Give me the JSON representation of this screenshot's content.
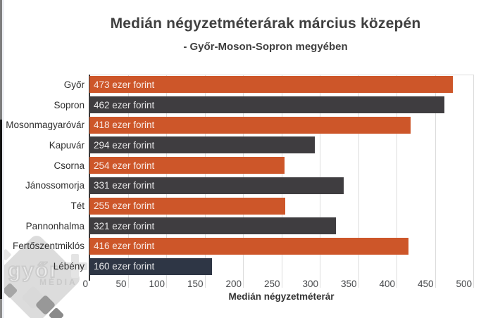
{
  "page": {
    "background": "#ffffff"
  },
  "chart_data": {
    "type": "bar",
    "orientation": "horizontal",
    "title": "Medián négyzetméterárak március közepén",
    "subtitle": "- Győr-Moson-Sopron megyében",
    "xlabel": "Medián négyzetméterár",
    "xlim": [
      0,
      500
    ],
    "x_ticks": [
      0,
      50,
      100,
      150,
      200,
      250,
      300,
      350,
      400,
      450,
      500
    ],
    "grid": true,
    "unit_suffix": " ezer forint",
    "categories": [
      "Győr",
      "Sopron",
      "Mosonmagyaróvár",
      "Kapuvár",
      "Csorna",
      "Jánossomorja",
      "Tét",
      "Pannonhalma",
      "Fertőszentmiklós",
      "Lébény"
    ],
    "values": [
      473,
      462,
      418,
      294,
      254,
      331,
      255,
      321,
      416,
      160
    ],
    "points": [
      {
        "name": "Győr",
        "value": 473,
        "label": "473 ezer forint",
        "color": "#cd5629"
      },
      {
        "name": "Sopron",
        "value": 462,
        "label": "462 ezer forint",
        "color": "#3f3d40"
      },
      {
        "name": "Mosonmagyaróvár",
        "value": 418,
        "label": "418 ezer forint",
        "color": "#cd5629"
      },
      {
        "name": "Kapuvár",
        "value": 294,
        "label": "294 ezer forint",
        "color": "#3f3d40"
      },
      {
        "name": "Csorna",
        "value": 254,
        "label": "254 ezer forint",
        "color": "#cd5629"
      },
      {
        "name": "Jánossomorja",
        "value": 331,
        "label": "331 ezer forint",
        "color": "#3f3d40"
      },
      {
        "name": "Tét",
        "value": 255,
        "label": "255 ezer forint",
        "color": "#cd5629"
      },
      {
        "name": "Pannonhalma",
        "value": 321,
        "label": "321 ezer forint",
        "color": "#3f3d40"
      },
      {
        "name": "Fertőszentmiklós",
        "value": 416,
        "label": "416 ezer forint",
        "color": "#cd5629"
      },
      {
        "name": "Lébény",
        "value": 160,
        "label": "160 ezer forint",
        "color": "#2e3645"
      }
    ],
    "palette": {
      "orange": "#cd5629",
      "dark_gray": "#3f3d40",
      "navy": "#2e3645",
      "gridline": "#dcdcdc",
      "axis_line": "#3a3a3a"
    }
  },
  "watermark": {
    "logo_text": "győr",
    "logo_plus": "+",
    "logo_subtext": "MÉDIA"
  },
  "window_edge": {
    "top_color": "#7e7e7e",
    "mid_color": "#141414",
    "bottom_color": "#8b8b8b"
  }
}
